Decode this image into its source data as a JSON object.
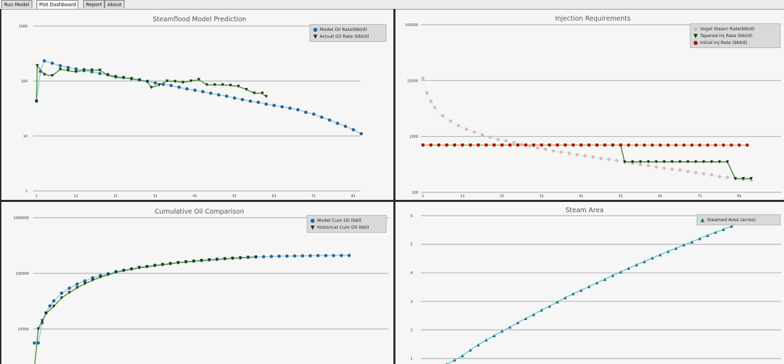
{
  "tabs": [
    {
      "label": "Run Model",
      "active": false
    },
    {
      "label": "Plot Dashboard",
      "active": true
    },
    {
      "label": "Report",
      "active": false
    },
    {
      "label": "About",
      "active": false
    }
  ],
  "chart_data": [
    {
      "type": "line",
      "title": "Steamflood Model Prediction",
      "y_scale": "log",
      "ylim": [
        1,
        1000
      ],
      "yticks": [
        "1000",
        "100",
        "10",
        "1"
      ],
      "xticks": [
        "1",
        "11",
        "21",
        "31",
        "41",
        "51",
        "61",
        "71",
        "81"
      ],
      "grid": true,
      "legend": "top-right",
      "series": [
        {
          "name": "Model Oil Rate(bbl/d)",
          "marker": "circle",
          "color": "#2c6394",
          "line_color": "#8fcbe6",
          "x": [
            1,
            2,
            3,
            5,
            7,
            9,
            11,
            13,
            15,
            17,
            19,
            21,
            23,
            25,
            27,
            29,
            31,
            33,
            35,
            37,
            39,
            41,
            43,
            45,
            47,
            49,
            51,
            53,
            55,
            57,
            59,
            61,
            63,
            65,
            67,
            69,
            71,
            73,
            75,
            77,
            79,
            81,
            83
          ],
          "y": [
            43,
            150,
            233,
            211,
            190,
            176,
            166,
            155,
            147,
            137,
            131,
            122,
            116,
            110,
            105,
            99,
            92,
            87,
            83,
            77,
            72,
            68,
            64,
            60,
            56,
            53,
            49,
            46,
            43,
            41,
            38,
            36,
            34,
            32,
            30,
            27,
            25,
            22,
            19.5,
            17,
            15,
            13,
            11
          ]
        },
        {
          "name": "Actual Oil Rate (bbl/d)",
          "marker": "triangle-down",
          "color": "#0e3a12",
          "line_color": "#4f8a2c",
          "x": [
            1,
            1.2,
            3,
            5,
            7,
            9,
            11,
            13,
            15,
            17,
            19,
            21,
            23,
            25,
            27,
            29,
            30,
            32,
            34,
            36,
            38,
            40,
            42,
            44,
            46,
            48,
            50,
            52,
            54,
            56,
            58,
            59
          ],
          "y": [
            43,
            190,
            131,
            125,
            163,
            155,
            146,
            160,
            158,
            157,
            128,
            116,
            114,
            110,
            104,
            97,
            76,
            85,
            100,
            98,
            94,
            100,
            106,
            85,
            85,
            85,
            83,
            80,
            70,
            60,
            60,
            52
          ]
        }
      ]
    },
    {
      "type": "line",
      "title": "Injection Requirements",
      "y_scale": "log",
      "ylim": [
        100,
        100000
      ],
      "yticks": [
        "100000",
        "10000",
        "1000",
        "100"
      ],
      "xticks": [
        "1",
        "11",
        "21",
        "31",
        "41",
        "51",
        "61",
        "71",
        "81"
      ],
      "grid": true,
      "legend": "top-right",
      "series": [
        {
          "name": "Vogel Steam Rate(bbl/d)",
          "marker": "circle",
          "color": "#d9b7c3",
          "line_color": "#e6cfd6",
          "x": [
            1,
            2,
            3,
            4,
            6,
            8,
            10,
            12,
            14,
            16,
            18,
            20,
            22,
            24,
            26,
            28,
            30,
            32,
            34,
            36,
            38,
            40,
            42,
            44,
            46,
            48,
            50,
            52,
            54,
            56,
            58,
            60,
            62,
            64,
            66,
            68,
            70,
            72,
            74,
            76,
            78,
            80,
            82,
            84
          ],
          "y": [
            11000,
            6000,
            4250,
            3300,
            2340,
            1880,
            1560,
            1350,
            1200,
            1070,
            970,
            885,
            835,
            770,
            720,
            670,
            620,
            590,
            550,
            525,
            500,
            470,
            450,
            430,
            405,
            390,
            370,
            345,
            330,
            315,
            300,
            285,
            270,
            260,
            250,
            235,
            225,
            215,
            205,
            190,
            185,
            175,
            170,
            165
          ]
        },
        {
          "name": "Tapered Inj Rate (bbl/d)",
          "marker": "triangle-down",
          "color": "#0b2a0e",
          "line_color": "#3f7d33",
          "x": [
            1,
            3,
            5,
            7,
            9,
            11,
            13,
            15,
            17,
            19,
            21,
            23,
            25,
            27,
            29,
            31,
            33,
            35,
            37,
            39,
            41,
            43,
            45,
            47,
            49,
            51,
            52,
            54,
            56,
            58,
            60,
            62,
            64,
            66,
            68,
            70,
            72,
            74,
            76,
            78,
            80,
            82,
            84
          ],
          "y": [
            700,
            700,
            700,
            700,
            700,
            700,
            700,
            700,
            700,
            700,
            700,
            700,
            700,
            700,
            700,
            700,
            700,
            700,
            700,
            700,
            700,
            700,
            700,
            700,
            700,
            700,
            350,
            350,
            350,
            350,
            350,
            350,
            350,
            350,
            350,
            350,
            350,
            350,
            350,
            350,
            175,
            175,
            175
          ]
        },
        {
          "name": "Initial Inj Rate (bbl/d)",
          "marker": "circle",
          "color": "#a8140f",
          "line_color": "#e8a634",
          "x": [
            1,
            3,
            5,
            7,
            9,
            11,
            13,
            15,
            17,
            19,
            21,
            23,
            25,
            27,
            29,
            31,
            33,
            35,
            37,
            39,
            41,
            43,
            45,
            47,
            49,
            51,
            53,
            55,
            57,
            59,
            61,
            63,
            65,
            67,
            69,
            71,
            73,
            75,
            77,
            79,
            81,
            83
          ],
          "y": [
            700,
            700,
            700,
            700,
            700,
            700,
            700,
            700,
            700,
            700,
            700,
            700,
            700,
            700,
            700,
            700,
            700,
            700,
            700,
            700,
            700,
            700,
            700,
            700,
            700,
            700,
            700,
            700,
            700,
            700,
            700,
            700,
            700,
            700,
            700,
            700,
            700,
            700,
            700,
            700,
            700,
            700
          ]
        }
      ]
    },
    {
      "type": "line",
      "title": "Cumulative Oil Comparison",
      "y_scale": "log",
      "yticks": [
        "1000000",
        "100000",
        "10000"
      ],
      "grid": true,
      "legend": "top-right",
      "series": [
        {
          "name": "Model Cum Oil (bbl)",
          "marker": "circle",
          "color": "#2c6394",
          "line_color": "#8fcbe6",
          "x": [
            1,
            2,
            3,
            4,
            5,
            6,
            8,
            10,
            12,
            14,
            16,
            18,
            20,
            22,
            24,
            26,
            28,
            30,
            32,
            34,
            36,
            38,
            40,
            42,
            44,
            46,
            48,
            50,
            52,
            54,
            56,
            58,
            60,
            62,
            64,
            66,
            68,
            70,
            72,
            74,
            76,
            78,
            80,
            82
          ],
          "y": [
            5600,
            5600,
            13000,
            19500,
            26000,
            32000,
            44000,
            54000,
            64000,
            73000,
            83000,
            91000,
            98000,
            107000,
            114000,
            120000,
            128000,
            133000,
            139000,
            145000,
            150000,
            156000,
            161000,
            166000,
            170000,
            175000,
            179000,
            183000,
            187000,
            190000,
            194000,
            197000,
            199000,
            201000,
            203000,
            204000,
            205000,
            206000,
            207000,
            208000,
            208500,
            209000,
            209500,
            210000
          ]
        },
        {
          "name": "Historical Cum Oil (bbl)",
          "marker": "triangle-down",
          "color": "#0e3a12",
          "line_color": "#4f8a2c",
          "x": [
            1,
            2,
            3,
            4,
            6,
            8,
            10,
            12,
            14,
            16,
            18,
            20,
            22,
            24,
            26,
            28,
            30,
            32,
            34,
            36,
            38,
            40,
            42,
            44,
            46,
            48,
            50,
            52,
            54,
            56,
            58
          ],
          "y": [
            2000,
            10000,
            14000,
            19000,
            25500,
            36000,
            45000,
            55000,
            65000,
            75000,
            85000,
            94000,
            104000,
            111000,
            118000,
            126000,
            131000,
            137000,
            142000,
            148000,
            155000,
            160000,
            164000,
            169000,
            173000,
            177000,
            182000,
            186000,
            189000,
            193000,
            196000
          ]
        }
      ]
    },
    {
      "type": "line",
      "title": "Steam Area",
      "y_scale": "linear",
      "yticks": [
        "6",
        "5",
        "4",
        "3",
        "2",
        "1"
      ],
      "grid": true,
      "legend": "top-right",
      "series": [
        {
          "name": "Steamed Area (acres)",
          "marker": "triangle-up",
          "color": "#1d6f78",
          "line_color": "#63c9d2",
          "x": [
            7,
            9,
            11,
            13,
            15,
            17,
            19,
            21,
            23,
            25,
            27,
            29,
            31,
            33,
            35,
            37,
            39,
            41,
            43,
            45,
            47,
            49,
            51,
            53,
            55,
            57,
            59,
            61,
            63,
            65,
            67,
            69,
            71,
            73,
            75,
            77,
            79,
            81,
            83
          ],
          "y": [
            0.8,
            0.95,
            1.1,
            1.3,
            1.48,
            1.65,
            1.8,
            1.96,
            2.1,
            2.26,
            2.4,
            2.54,
            2.7,
            2.83,
            2.98,
            3.13,
            3.27,
            3.39,
            3.52,
            3.65,
            3.77,
            3.91,
            4.03,
            4.16,
            4.28,
            4.39,
            4.52,
            4.63,
            4.75,
            4.86,
            4.98,
            5.08,
            5.2,
            5.31,
            5.42,
            5.52,
            5.63,
            5.74,
            5.9
          ]
        }
      ]
    }
  ]
}
